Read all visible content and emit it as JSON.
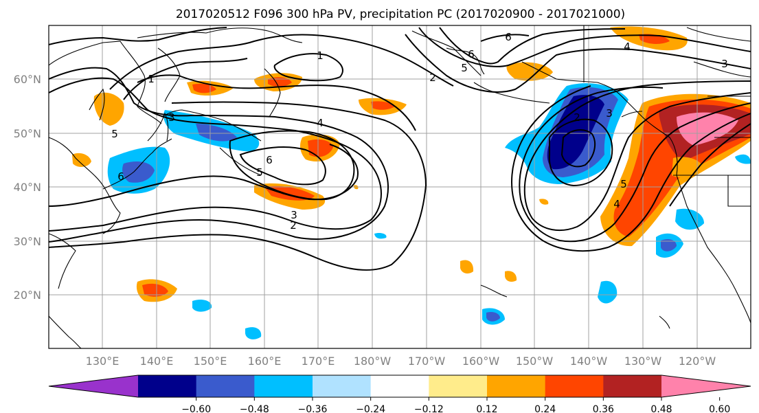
{
  "title": "2017020512 F096 300 hPa PV, precipitation PC (2017020900 - 2017021000)",
  "axes": {
    "lat_ticks": [
      "20°N",
      "30°N",
      "40°N",
      "50°N",
      "60°N"
    ],
    "lon_ticks": [
      "130°E",
      "140°E",
      "150°E",
      "160°E",
      "170°E",
      "180°W",
      "170°W",
      "160°W",
      "150°W",
      "140°W",
      "130°W",
      "120°W"
    ]
  },
  "colorbar": {
    "colors": [
      "#9932cc",
      "#00008b",
      "#3a5bcd",
      "#00bfff",
      "#b0e2ff",
      "#ffffff",
      "#ffec8b",
      "#ffa500",
      "#ff4500",
      "#b22222",
      "#ff82ab"
    ],
    "tick_labels": [
      "−0.60",
      "−0.48",
      "−0.36",
      "−0.24",
      "−0.12",
      "0.12",
      "0.24",
      "0.36",
      "0.48",
      "0.60"
    ],
    "extend": "both"
  },
  "contour_labels": [
    "1",
    "2",
    "3",
    "4",
    "5",
    "6"
  ],
  "chart_data": {
    "type": "map",
    "fields": [
      "300 hPa PV (contours, PVU)",
      "precipitation PC (shaded)"
    ],
    "pv_contour_levels": [
      1,
      2,
      3,
      4,
      5,
      6
    ],
    "shading_levels": [
      -0.6,
      -0.48,
      -0.36,
      -0.24,
      -0.12,
      0.12,
      0.24,
      0.36,
      0.48,
      0.6
    ],
    "lat_range": [
      "10°N",
      "70°N"
    ],
    "lon_range": [
      "120°E",
      "110°W"
    ],
    "grid": true
  }
}
